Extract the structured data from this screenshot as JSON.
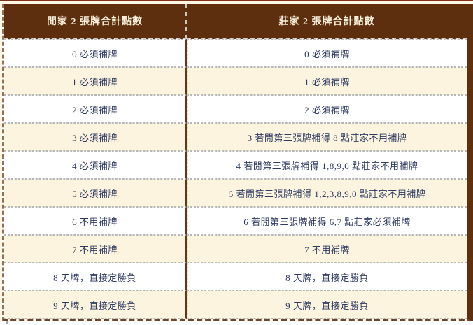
{
  "header": {
    "player_label": "閒家 2 張牌合計點數",
    "banker_label": "莊家 2 張牌合計點數"
  },
  "rows": [
    {
      "player": "0 必須補牌",
      "banker": "0 必須補牌"
    },
    {
      "player": "1 必須補牌",
      "banker": "1 必須補牌"
    },
    {
      "player": "2 必須補牌",
      "banker": "2 必須補牌"
    },
    {
      "player": "3 必須補牌",
      "banker": "3 若閒第三張牌補得 8 點莊家不用補牌"
    },
    {
      "player": "4 必須補牌",
      "banker": "4 若閒第三張牌補得 1,8,9,0 點莊家不用補牌"
    },
    {
      "player": "5 必須補牌",
      "banker": "5 若閒第三張牌補得 1,2,3,8,9,0 點莊家不用補牌"
    },
    {
      "player": "6 不用補牌",
      "banker": "6 若閒第三張牌補得 6,7 點莊家必須補牌"
    },
    {
      "player": "7 不用補牌",
      "banker": "7 不用補牌"
    },
    {
      "player": "8 天牌，直接定勝負",
      "banker": "8 天牌，直接定勝負"
    },
    {
      "player": "9 天牌，直接定勝負",
      "banker": "9 天牌，直接定勝負"
    }
  ],
  "colors": {
    "header_bg": "#5E2F0F",
    "header_text": "#F9F1DC",
    "body_text": "#2E3A60",
    "row_bg": "#FFFFFF",
    "row_alt_bg": "#FCF4DF",
    "column_divider": "#6B3410",
    "page_bg": "#FEF8E4"
  }
}
